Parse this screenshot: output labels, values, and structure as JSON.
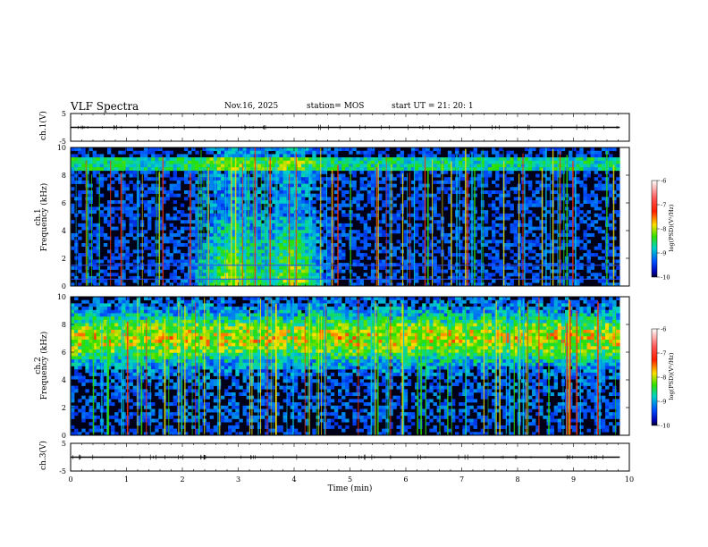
{
  "header": {
    "title": "VLF Spectra",
    "date": "Nov.16, 2025",
    "station": "station= MOS",
    "start_ut": "start  UT  =   21: 20: 1"
  },
  "chart_data": {
    "type": "heatmap",
    "title": "VLF Spectra",
    "xlabel": "Time  (min)",
    "x_ticks": [
      "0",
      "1",
      "2",
      "3",
      "4",
      "5",
      "6",
      "7",
      "8",
      "9",
      "10"
    ],
    "xlim": [
      0,
      10
    ],
    "data_end_min": 9.83,
    "panels": [
      {
        "name": "ch.1(V)",
        "kind": "waveform",
        "ylim": [
          -5,
          5
        ],
        "y_ticks": [
          "5",
          "-5"
        ],
        "level": 0
      },
      {
        "name": "ch.1 spectrogram",
        "kind": "spectrogram",
        "ylabel_top": "ch.1",
        "ylabel": "Frequency  (kHz)",
        "ylim": [
          0,
          10
        ],
        "y_ticks": [
          "0",
          "2",
          "4",
          "6",
          "8",
          "10"
        ],
        "colorbar_label": "log(PSD)(V²/Hz)",
        "colorbar_ticks": [
          "-6",
          "-7",
          "-8",
          "-9",
          "-10"
        ],
        "color_range": [
          -10,
          -6
        ]
      },
      {
        "name": "ch.2 spectrogram",
        "kind": "spectrogram",
        "ylabel_top": "ch.2",
        "ylabel": "Frequency  (kHz)",
        "ylim": [
          0,
          10
        ],
        "y_ticks": [
          "0",
          "2",
          "4",
          "6",
          "8",
          "10"
        ],
        "colorbar_label": "log(PSD)(V²/Hz)",
        "colorbar_ticks": [
          "-6",
          "-7",
          "-8",
          "-9",
          "-10"
        ],
        "color_range": [
          -10,
          -6
        ]
      },
      {
        "name": "ch.3(V)",
        "kind": "waveform",
        "ylim": [
          -5,
          5
        ],
        "y_ticks": [
          "5",
          "-5"
        ],
        "level": 0
      }
    ]
  }
}
